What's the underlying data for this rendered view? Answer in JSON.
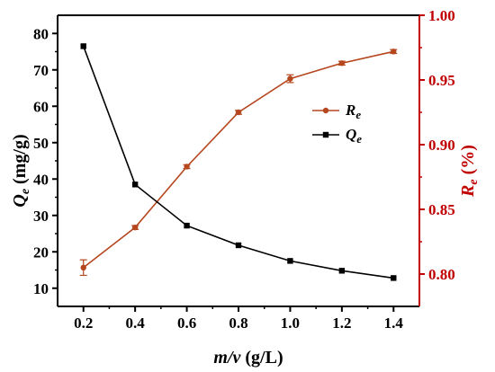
{
  "colors": {
    "black": "#000000",
    "red": "#c00000",
    "re_series": "#b5461e"
  },
  "chart_data": {
    "type": "line",
    "x": [
      0.2,
      0.4,
      0.6,
      0.8,
      1.0,
      1.2,
      1.4
    ],
    "xlabel": {
      "italic": "m/v",
      "rest": " (g/L)"
    },
    "xlim": [
      0.1,
      1.5
    ],
    "xticks": [
      "0.2",
      "0.4",
      "0.6",
      "0.8",
      "1.0",
      "1.2",
      "1.4"
    ],
    "ylabel_left": {
      "main": "Q",
      "sub": "e",
      "rest": " (mg/g)"
    },
    "ylim_left": [
      5,
      85
    ],
    "yticks_left": [
      "10",
      "20",
      "30",
      "40",
      "50",
      "60",
      "70",
      "80"
    ],
    "ylabel_right": {
      "main": "R",
      "sub": "e",
      "rest": " (%)"
    },
    "ylim_right": [
      0.775,
      1.0
    ],
    "yticks_right": [
      "0.80",
      "0.85",
      "0.90",
      "0.95",
      "1.00"
    ],
    "legend_placement": "right-center",
    "grid": false,
    "series": [
      {
        "name": {
          "main": "R",
          "sub": "e"
        },
        "axis": "right",
        "marker": "circle",
        "color": "#b5461e",
        "values": [
          0.805,
          0.836,
          0.883,
          0.925,
          0.951,
          0.963,
          0.972
        ],
        "errors": [
          0.006,
          0.0015,
          0.0015,
          0.0015,
          0.003,
          0.0015,
          0.0015
        ]
      },
      {
        "name": {
          "main": "Q",
          "sub": "e"
        },
        "axis": "left",
        "marker": "square",
        "color": "#000000",
        "values": [
          76.5,
          38.5,
          27.2,
          21.8,
          17.5,
          14.8,
          12.8
        ]
      }
    ]
  }
}
